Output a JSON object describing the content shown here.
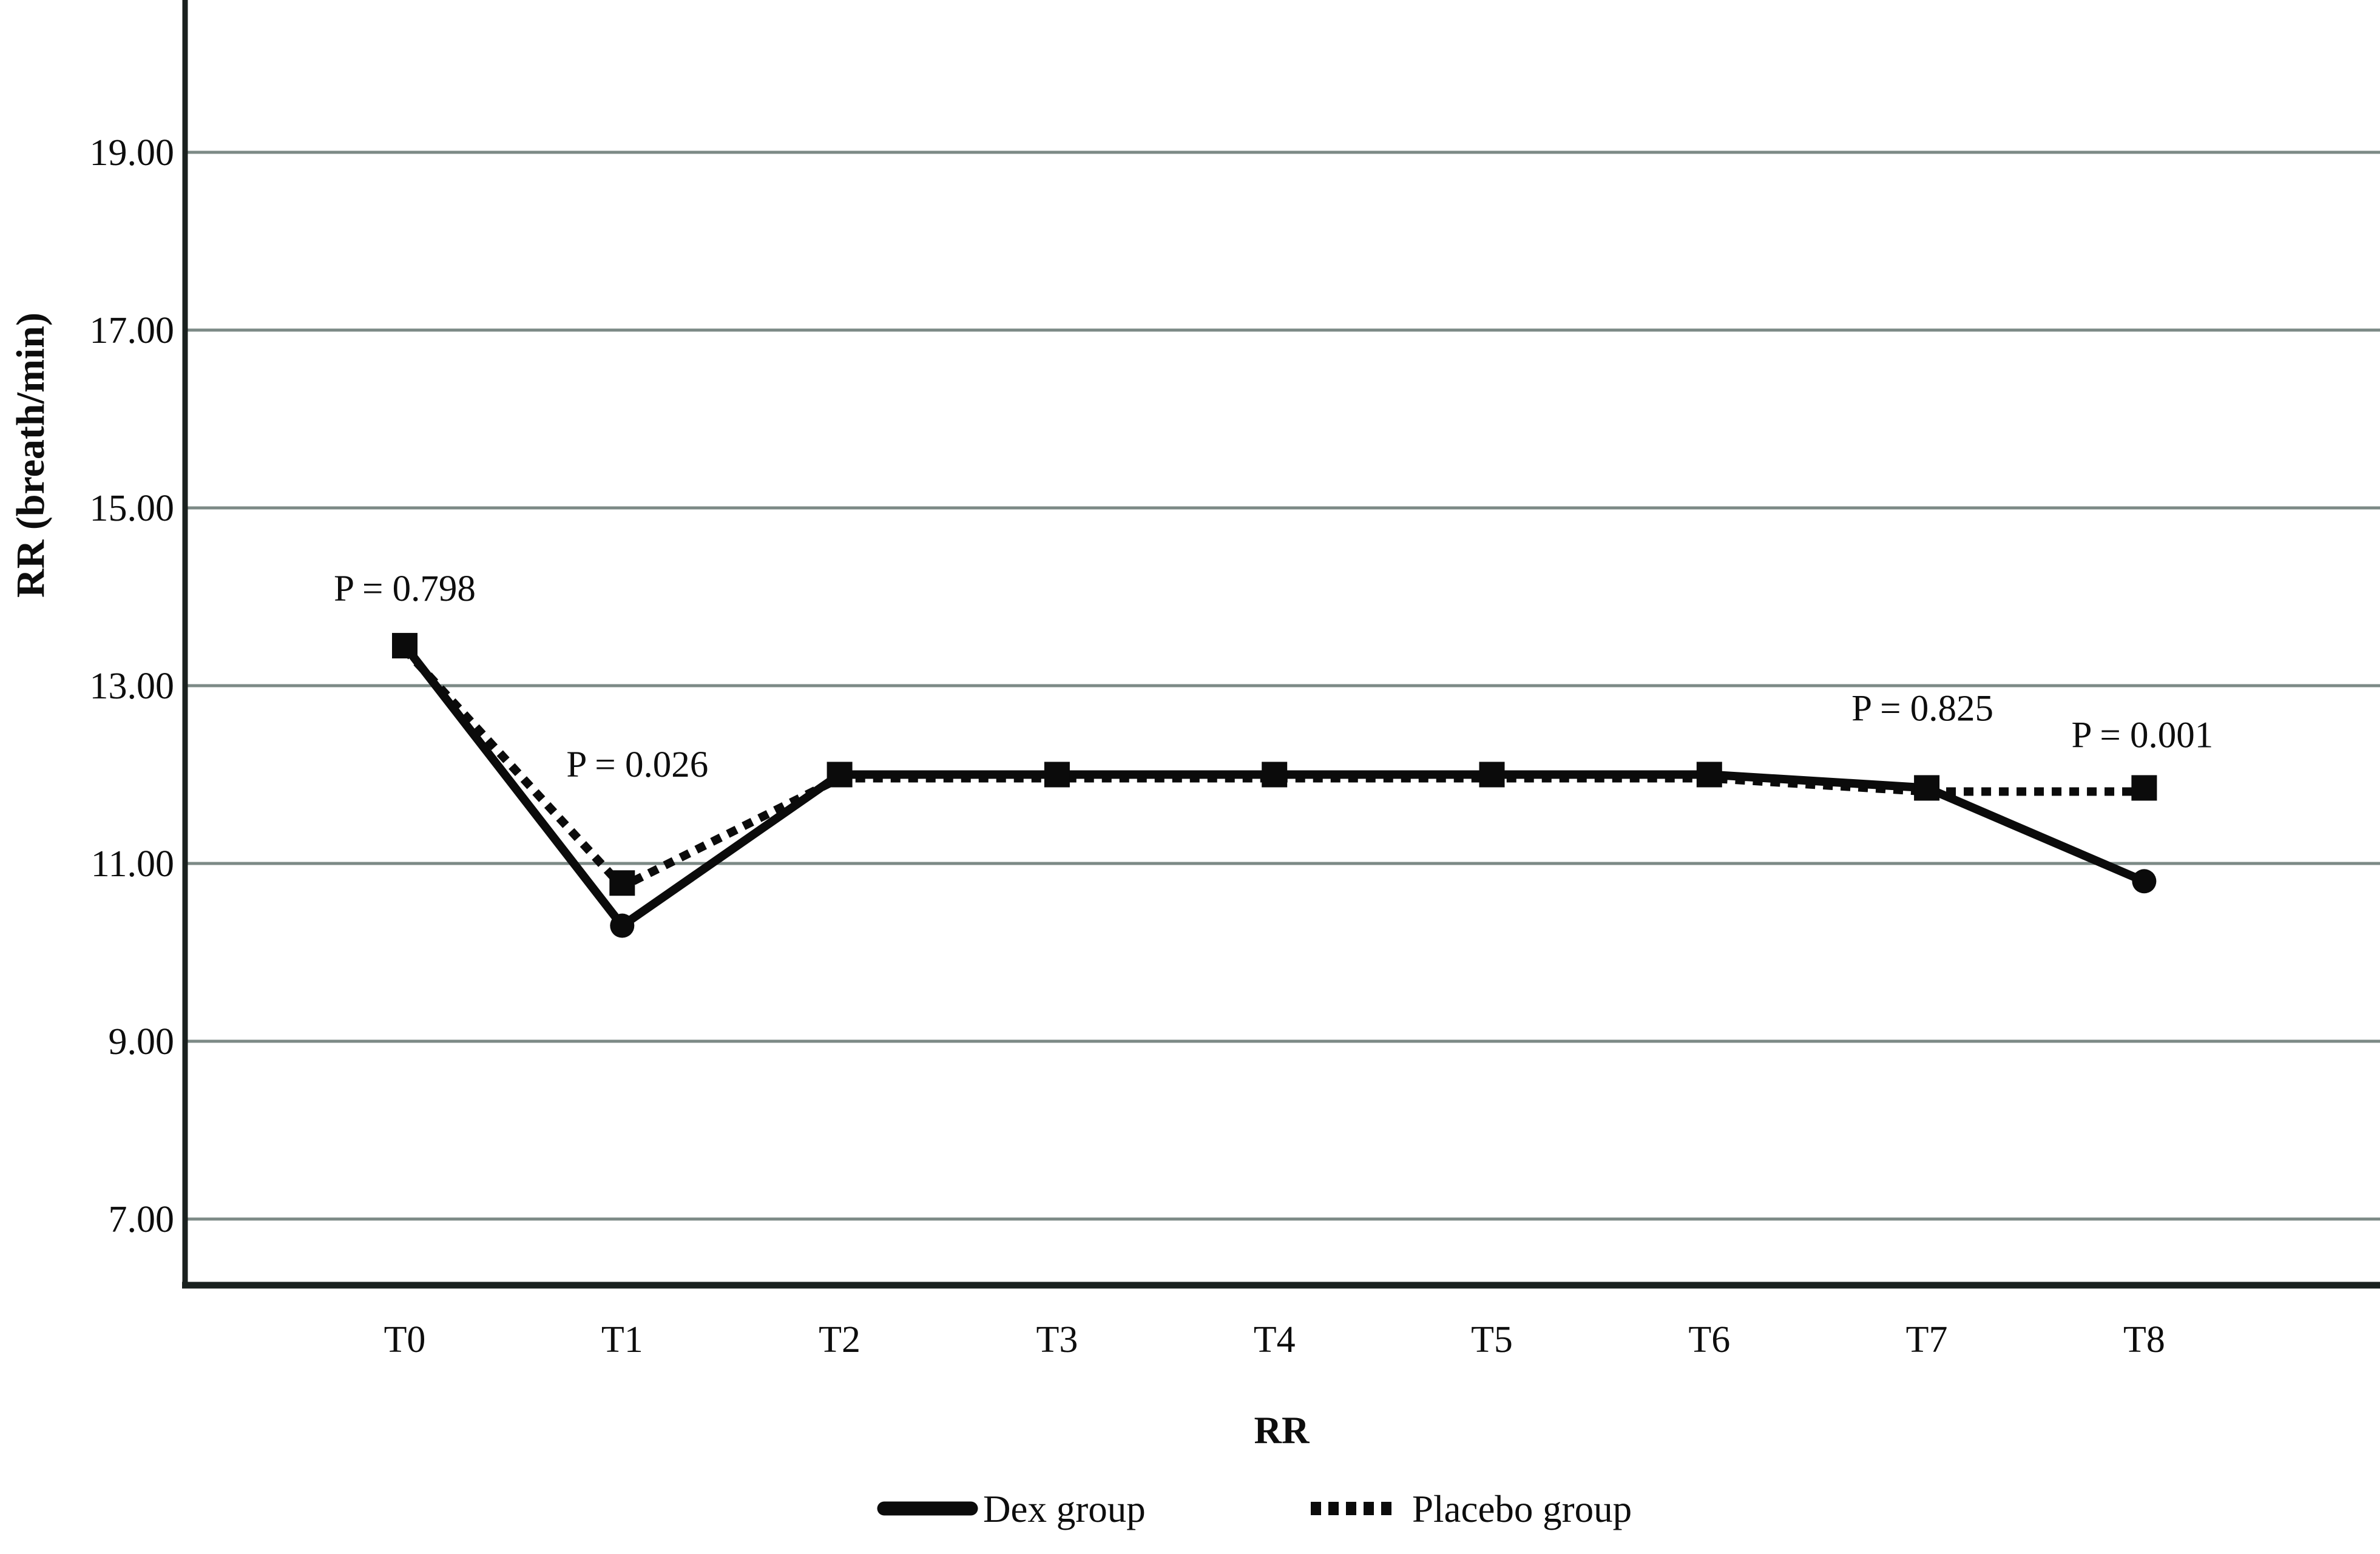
{
  "chart_data": {
    "type": "line",
    "title": "",
    "x_axis": {
      "title": "RR",
      "categories": [
        "T0",
        "T1",
        "T2",
        "T3",
        "T4",
        "T5",
        "T6",
        "T7",
        "T8"
      ]
    },
    "y_axis": {
      "title": "RR (breath/min)",
      "ticks": [
        "19.00",
        "17.00",
        "15.00",
        "13.00",
        "11.00",
        "9.00",
        "7.00"
      ],
      "range": [
        6.3,
        20.7
      ]
    },
    "series": [
      {
        "name": "Dex group",
        "line_style": "solid",
        "marker": "circle",
        "values": [
          13.45,
          10.3,
          12.0,
          12.0,
          12.0,
          12.0,
          12.0,
          11.85,
          10.8
        ]
      },
      {
        "name": "Placebo group",
        "line_style": "dotted",
        "marker": "square",
        "values": [
          13.45,
          10.78,
          12.0,
          12.0,
          12.0,
          12.0,
          12.0,
          11.85,
          11.85
        ]
      }
    ],
    "annotations": [
      {
        "text": "P = 0.798",
        "category_index": 0,
        "dx": 0,
        "y_value": 14.1
      },
      {
        "text": "P = 0.026",
        "category_index": 1,
        "dx": 25,
        "y_value": 12.12
      },
      {
        "text": "P = 0.825",
        "category_index": 7,
        "dx": -7,
        "y_value": 12.75
      },
      {
        "text": "P = 0.001",
        "category_index": 8,
        "dx": -3,
        "y_value": 12.45
      }
    ],
    "legend": {
      "position": "bottom-center",
      "entries": [
        "Dex group",
        "Placebo group"
      ]
    },
    "grid": true,
    "colors": {
      "line": "#0b0b0b",
      "annotation_red": "#d11717",
      "gridline": "#7c8a86",
      "axis": "#1a211f",
      "background": "#ffffff"
    }
  }
}
